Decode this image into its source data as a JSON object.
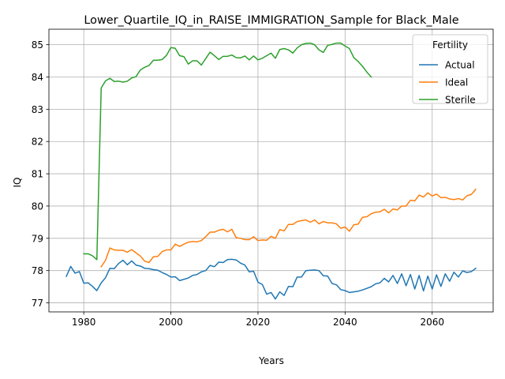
{
  "chart_data": {
    "type": "line",
    "title": "Lower_Quartile_IQ_in_RAISE_IMMIGRATION_Sample for Black_Male",
    "xlabel": "Years",
    "ylabel": "IQ",
    "xlim": [
      1972,
      2074
    ],
    "ylim": [
      76.72,
      85.48
    ],
    "xticks": [
      1980,
      2000,
      2020,
      2040,
      2060
    ],
    "yticks": [
      77,
      78,
      79,
      80,
      81,
      82,
      83,
      84,
      85
    ],
    "grid": true,
    "legend": {
      "title": "Fertility",
      "placement": "top-right"
    },
    "series": [
      {
        "name": "Actual",
        "color": "#1f77b4",
        "x": [
          1976,
          1977,
          1978,
          1979,
          1980,
          1981,
          1982,
          1983,
          1984,
          1985,
          1986,
          1987,
          1988,
          1989,
          1990,
          1991,
          1992,
          1993,
          1994,
          1995,
          1996,
          1997,
          1998,
          1999,
          2000,
          2001,
          2002,
          2003,
          2004,
          2005,
          2006,
          2007,
          2008,
          2009,
          2010,
          2011,
          2012,
          2013,
          2014,
          2015,
          2016,
          2017,
          2018,
          2019,
          2020,
          2021,
          2022,
          2023,
          2024,
          2025,
          2026,
          2027,
          2028,
          2029,
          2030,
          2031,
          2032,
          2033,
          2034,
          2035,
          2036,
          2037,
          2038,
          2039,
          2040,
          2041,
          2042,
          2043,
          2044,
          2045,
          2046,
          2047,
          2048,
          2049,
          2050,
          2051,
          2052,
          2053,
          2054,
          2055,
          2056,
          2057,
          2058,
          2059,
          2060,
          2061,
          2062,
          2063,
          2064,
          2065,
          2066,
          2067,
          2068,
          2069,
          2070
        ],
        "values": [
          77.82,
          78.13,
          77.92,
          77.97,
          77.61,
          77.62,
          77.51,
          77.38,
          77.62,
          77.78,
          78.07,
          78.06,
          78.22,
          78.32,
          78.18,
          78.3,
          78.17,
          78.14,
          78.07,
          78.06,
          78.03,
          78.01,
          77.94,
          77.88,
          77.8,
          77.81,
          77.69,
          77.73,
          77.77,
          77.85,
          77.88,
          77.96,
          78.0,
          78.16,
          78.12,
          78.26,
          78.25,
          78.34,
          78.35,
          78.33,
          78.23,
          78.17,
          77.96,
          77.98,
          77.64,
          77.57,
          77.27,
          77.32,
          77.12,
          77.34,
          77.23,
          77.51,
          77.5,
          77.8,
          77.8,
          78.0,
          78.01,
          78.02,
          78.0,
          77.84,
          77.83,
          77.6,
          77.56,
          77.41,
          77.38,
          77.32,
          77.34,
          77.36,
          77.4,
          77.45,
          77.5,
          77.59,
          77.62,
          77.76,
          77.65,
          77.85,
          77.6,
          77.9,
          77.53,
          77.88,
          77.43,
          77.85,
          77.37,
          77.83,
          77.43,
          77.87,
          77.51,
          77.9,
          77.67,
          77.95,
          77.8,
          77.99,
          77.94,
          77.97,
          78.07
        ]
      },
      {
        "name": "Ideal",
        "color": "#ff7f0e",
        "x": [
          1984,
          1985,
          1986,
          1987,
          1988,
          1989,
          1990,
          1991,
          1992,
          1993,
          1994,
          1995,
          1996,
          1997,
          1998,
          1999,
          2000,
          2001,
          2002,
          2003,
          2004,
          2005,
          2006,
          2007,
          2008,
          2009,
          2010,
          2011,
          2012,
          2013,
          2014,
          2015,
          2016,
          2017,
          2018,
          2019,
          2020,
          2021,
          2022,
          2023,
          2024,
          2025,
          2026,
          2027,
          2028,
          2029,
          2030,
          2031,
          2032,
          2033,
          2034,
          2035,
          2036,
          2037,
          2038,
          2039,
          2040,
          2041,
          2042,
          2043,
          2044,
          2045,
          2046,
          2047,
          2048,
          2049,
          2050,
          2051,
          2052,
          2053,
          2054,
          2055,
          2056,
          2057,
          2058,
          2059,
          2060,
          2061,
          2062,
          2063,
          2064,
          2065,
          2066,
          2067,
          2068,
          2069,
          2070
        ],
        "values": [
          78.12,
          78.32,
          78.7,
          78.64,
          78.63,
          78.63,
          78.57,
          78.65,
          78.55,
          78.45,
          78.29,
          78.25,
          78.43,
          78.44,
          78.59,
          78.64,
          78.64,
          78.82,
          78.75,
          78.82,
          78.88,
          78.9,
          78.89,
          78.93,
          79.05,
          79.19,
          79.19,
          79.25,
          79.28,
          79.2,
          79.28,
          79.02,
          79.0,
          78.96,
          78.96,
          79.05,
          78.93,
          78.95,
          78.94,
          79.06,
          79.0,
          79.27,
          79.23,
          79.43,
          79.43,
          79.52,
          79.55,
          79.57,
          79.5,
          79.57,
          79.45,
          79.52,
          79.48,
          79.48,
          79.45,
          79.31,
          79.35,
          79.22,
          79.42,
          79.44,
          79.65,
          79.67,
          79.76,
          79.81,
          79.82,
          79.9,
          79.79,
          79.91,
          79.88,
          80.0,
          80.0,
          80.18,
          80.16,
          80.34,
          80.28,
          80.41,
          80.31,
          80.37,
          80.26,
          80.27,
          80.22,
          80.2,
          80.23,
          80.19,
          80.32,
          80.36,
          80.52
        ]
      },
      {
        "name": "Sterile",
        "color": "#2ca02c",
        "x": [
          1980,
          1981,
          1982,
          1983,
          1984,
          1985,
          1986,
          1987,
          1988,
          1989,
          1990,
          1991,
          1992,
          1993,
          1994,
          1995,
          1996,
          1997,
          1998,
          1999,
          2000,
          2001,
          2002,
          2003,
          2004,
          2005,
          2006,
          2007,
          2008,
          2009,
          2010,
          2011,
          2012,
          2013,
          2014,
          2015,
          2016,
          2017,
          2018,
          2019,
          2020,
          2021,
          2022,
          2023,
          2024,
          2025,
          2026,
          2027,
          2028,
          2029,
          2030,
          2031,
          2032,
          2033,
          2034,
          2035,
          2036,
          2037,
          2038,
          2039,
          2040,
          2041,
          2042,
          2043,
          2044,
          2045,
          2046
        ],
        "values": [
          78.52,
          78.52,
          78.46,
          78.34,
          83.66,
          83.88,
          83.96,
          83.86,
          83.87,
          83.84,
          83.87,
          83.97,
          84.01,
          84.22,
          84.3,
          84.36,
          84.52,
          84.52,
          84.54,
          84.67,
          84.91,
          84.89,
          84.66,
          84.63,
          84.4,
          84.5,
          84.5,
          84.37,
          84.57,
          84.77,
          84.66,
          84.54,
          84.64,
          84.64,
          84.68,
          84.6,
          84.59,
          84.65,
          84.53,
          84.65,
          84.53,
          84.58,
          84.66,
          84.74,
          84.58,
          84.85,
          84.88,
          84.84,
          84.74,
          84.9,
          85.0,
          85.04,
          85.05,
          85.0,
          84.84,
          84.76,
          84.98,
          85.01,
          85.05,
          85.05,
          84.96,
          84.88,
          84.6,
          84.48,
          84.33,
          84.15,
          84.0
        ]
      }
    ]
  }
}
